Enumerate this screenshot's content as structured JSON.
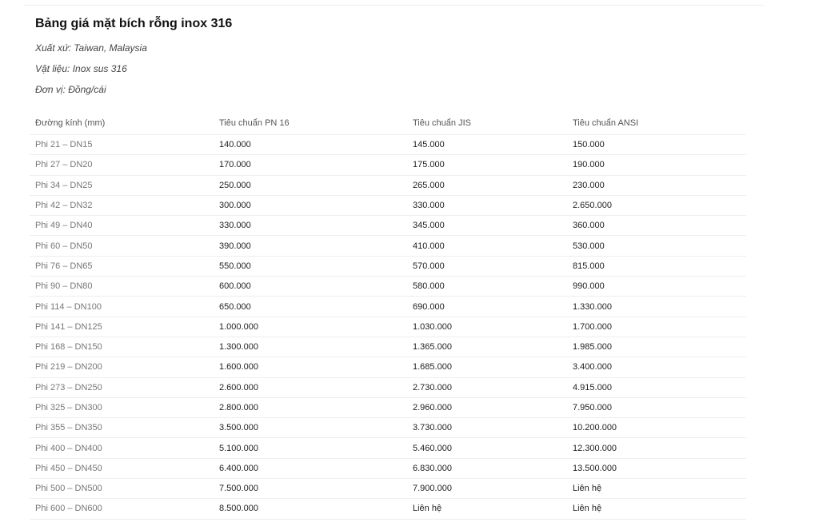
{
  "title": "Bảng giá mặt bích rỗng inox 316",
  "meta": [
    "Xuất xứ: Taiwan, Malaysia",
    "Vật liệu: Inox sus 316",
    "Đơn vị: Đồng/cái"
  ],
  "table": {
    "headers": [
      "Đường kính (mm)",
      "Tiêu chuẩn PN 16",
      "Tiêu chuẩn JIS",
      "Tiêu chuẩn ANSI"
    ],
    "rows": [
      [
        "Phi 21 – DN15",
        "140.000",
        "145.000",
        "150.000"
      ],
      [
        "Phi 27 – DN20",
        "170.000",
        "175.000",
        "190.000"
      ],
      [
        "Phi 34 – DN25",
        "250.000",
        "265.000",
        "230.000"
      ],
      [
        "Phi 42 – DN32",
        "300.000",
        "330.000",
        "2.650.000"
      ],
      [
        "Phi 49 – DN40",
        "330.000",
        "345.000",
        "360.000"
      ],
      [
        "Phi 60 – DN50",
        "390.000",
        "410.000",
        "530.000"
      ],
      [
        "Phi 76 – DN65",
        "550.000",
        "570.000",
        "815.000"
      ],
      [
        "Phi 90 – DN80",
        "600.000",
        "580.000",
        "990.000"
      ],
      [
        "Phi 114 – DN100",
        "650.000",
        "690.000",
        "1.330.000"
      ],
      [
        "Phi 141 – DN125",
        "1.000.000",
        "1.030.000",
        "1.700.000"
      ],
      [
        "Phi 168 – DN150",
        "1.300.000",
        "1.365.000",
        "1.985.000"
      ],
      [
        "Phi 219 – DN200",
        "1.600.000",
        "1.685.000",
        "3.400.000"
      ],
      [
        "Phi 273 – DN250",
        "2.600.000",
        "2.730.000",
        "4.915.000"
      ],
      [
        "Phi 325 – DN300",
        "2.800.000",
        "2.960.000",
        "7.950.000"
      ],
      [
        "Phi 355 – DN350",
        "3.500.000",
        "3.730.000",
        "10.200.000"
      ],
      [
        "Phi 400 – DN400",
        "5.100.000",
        "5.460.000",
        "12.300.000"
      ],
      [
        "Phi 450 – DN450",
        "6.400.000",
        "6.830.000",
        "13.500.000"
      ],
      [
        "Phi 500 – DN500",
        "7.500.000",
        "7.900.000",
        "Liên hệ"
      ],
      [
        "Phi 600 – DN600",
        "8.500.000",
        "Liên hệ",
        "Liên hệ"
      ]
    ]
  }
}
